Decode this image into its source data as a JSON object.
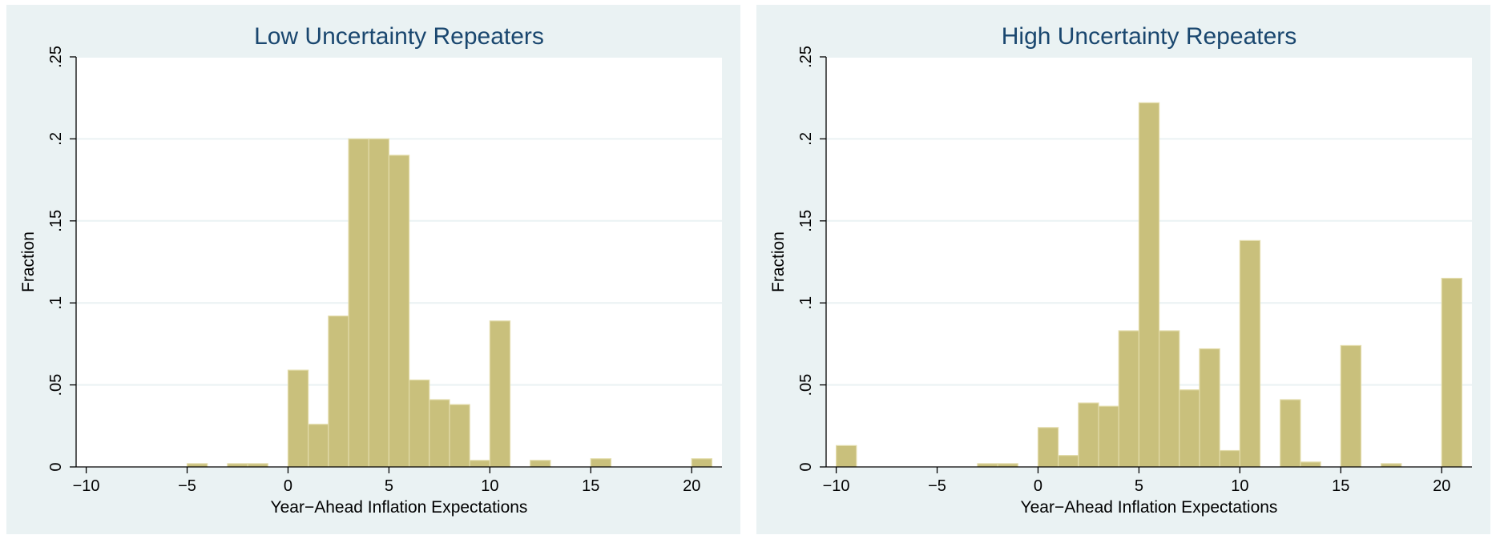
{
  "chart_data": [
    {
      "type": "bar",
      "title": "Low Uncertainty Repeaters",
      "xlabel": "Year−Ahead Inflation Expectations",
      "ylabel": "Fraction",
      "xlim": [
        -10.5,
        21.5
      ],
      "ylim": [
        0,
        0.25
      ],
      "xticks": [
        -10,
        -5,
        0,
        5,
        10,
        15,
        20
      ],
      "xtick_labels": [
        "−10",
        "−5",
        "0",
        "5",
        "10",
        "15",
        "20"
      ],
      "yticks": [
        0,
        0.05,
        0.1,
        0.15,
        0.2,
        0.25
      ],
      "ytick_labels": [
        "0",
        ".05",
        ".1",
        ".15",
        ".2",
        ".25"
      ],
      "grid": true,
      "bin_width": 1,
      "bins": [
        {
          "x0": -5,
          "value": 0.002
        },
        {
          "x0": -3,
          "value": 0.002
        },
        {
          "x0": -2,
          "value": 0.002
        },
        {
          "x0": 0,
          "value": 0.059
        },
        {
          "x0": 1,
          "value": 0.026
        },
        {
          "x0": 2,
          "value": 0.092
        },
        {
          "x0": 3,
          "value": 0.2
        },
        {
          "x0": 4,
          "value": 0.2
        },
        {
          "x0": 5,
          "value": 0.19
        },
        {
          "x0": 6,
          "value": 0.053
        },
        {
          "x0": 7,
          "value": 0.041
        },
        {
          "x0": 8,
          "value": 0.038
        },
        {
          "x0": 9,
          "value": 0.004
        },
        {
          "x0": 10,
          "value": 0.089
        },
        {
          "x0": 12,
          "value": 0.004
        },
        {
          "x0": 15,
          "value": 0.005
        },
        {
          "x0": 20,
          "value": 0.005
        }
      ]
    },
    {
      "type": "bar",
      "title": "High Uncertainty Repeaters",
      "xlabel": "Year−Ahead Inflation Expectations",
      "ylabel": "Fraction",
      "xlim": [
        -10.5,
        21.5
      ],
      "ylim": [
        0,
        0.25
      ],
      "xticks": [
        -10,
        -5,
        0,
        5,
        10,
        15,
        20
      ],
      "xtick_labels": [
        "−10",
        "−5",
        "0",
        "5",
        "10",
        "15",
        "20"
      ],
      "yticks": [
        0,
        0.05,
        0.1,
        0.15,
        0.2,
        0.25
      ],
      "ytick_labels": [
        "0",
        ".05",
        ".1",
        ".15",
        ".2",
        ".25"
      ],
      "grid": true,
      "bin_width": 1,
      "bins": [
        {
          "x0": -10,
          "value": 0.013
        },
        {
          "x0": -3,
          "value": 0.002
        },
        {
          "x0": -2,
          "value": 0.002
        },
        {
          "x0": 0,
          "value": 0.024
        },
        {
          "x0": 1,
          "value": 0.007
        },
        {
          "x0": 2,
          "value": 0.039
        },
        {
          "x0": 3,
          "value": 0.037
        },
        {
          "x0": 4,
          "value": 0.083
        },
        {
          "x0": 5,
          "value": 0.222
        },
        {
          "x0": 6,
          "value": 0.083
        },
        {
          "x0": 7,
          "value": 0.047
        },
        {
          "x0": 8,
          "value": 0.072
        },
        {
          "x0": 9,
          "value": 0.01
        },
        {
          "x0": 10,
          "value": 0.138
        },
        {
          "x0": 12,
          "value": 0.041
        },
        {
          "x0": 13,
          "value": 0.003
        },
        {
          "x0": 15,
          "value": 0.074
        },
        {
          "x0": 17,
          "value": 0.002
        },
        {
          "x0": 20,
          "value": 0.115
        }
      ]
    }
  ],
  "colors": {
    "panel_background": "#eaf2f3",
    "plot_background": "#ffffff",
    "grid": "#eaf2f3",
    "bar_fill": "#c9c07c",
    "bar_stroke": "#e3dcab",
    "title": "#1a476f",
    "text": "#000000"
  }
}
